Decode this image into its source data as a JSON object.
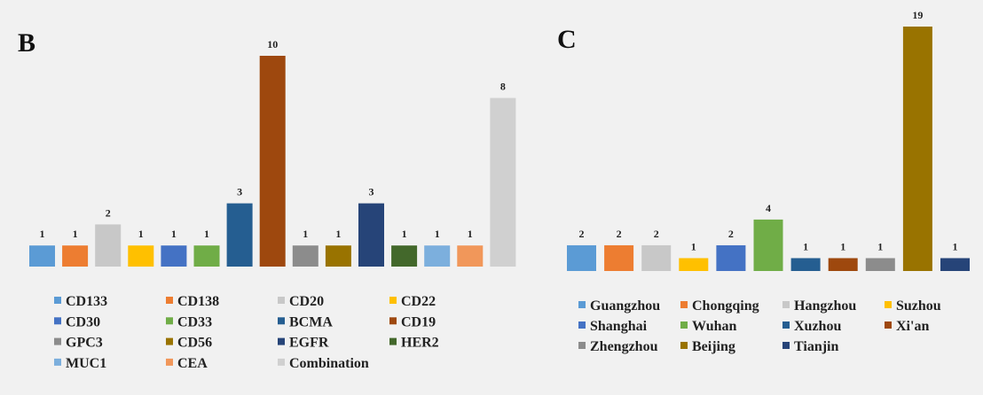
{
  "chart_data": [
    {
      "type": "bar",
      "panel_label": "B",
      "categories": [
        "CD133",
        "CD138",
        "CD20",
        "CD22",
        "CD30",
        "CD33",
        "BCMA",
        "CD19",
        "GPC3",
        "CD56",
        "EGFR",
        "HER2",
        "MUC1",
        "CEA",
        "Combination"
      ],
      "values": [
        1,
        1,
        2,
        1,
        1,
        1,
        3,
        10,
        1,
        1,
        3,
        1,
        1,
        1,
        8
      ],
      "colors": [
        "#5b9bd5",
        "#ed7d31",
        "#c8c8c8",
        "#ffc000",
        "#4472c4",
        "#70ad47",
        "#255e91",
        "#9e480e",
        "#8c8c8c",
        "#997300",
        "#264478",
        "#43682b",
        "#7cafdd",
        "#f1975a",
        "#d0d0d0"
      ],
      "legend_placement": "bottom",
      "ylim": [
        0,
        10
      ],
      "grid": false,
      "show_value_labels": true
    },
    {
      "type": "bar",
      "panel_label": "C",
      "categories": [
        "Guangzhou",
        "Chongqing",
        "Hangzhou",
        "Suzhou",
        "Shanghai",
        "Wuhan",
        "Xuzhou",
        "Xi'an",
        "Zhengzhou",
        "Beijing",
        "Tianjin"
      ],
      "values": [
        2,
        2,
        2,
        1,
        2,
        4,
        1,
        1,
        1,
        19,
        1
      ],
      "colors": [
        "#5b9bd5",
        "#ed7d31",
        "#c8c8c8",
        "#ffc000",
        "#4472c4",
        "#70ad47",
        "#255e91",
        "#9e480e",
        "#8c8c8c",
        "#997300",
        "#264478"
      ],
      "legend_placement": "bottom",
      "ylim": [
        0,
        19
      ],
      "grid": false,
      "show_value_labels": true
    }
  ]
}
